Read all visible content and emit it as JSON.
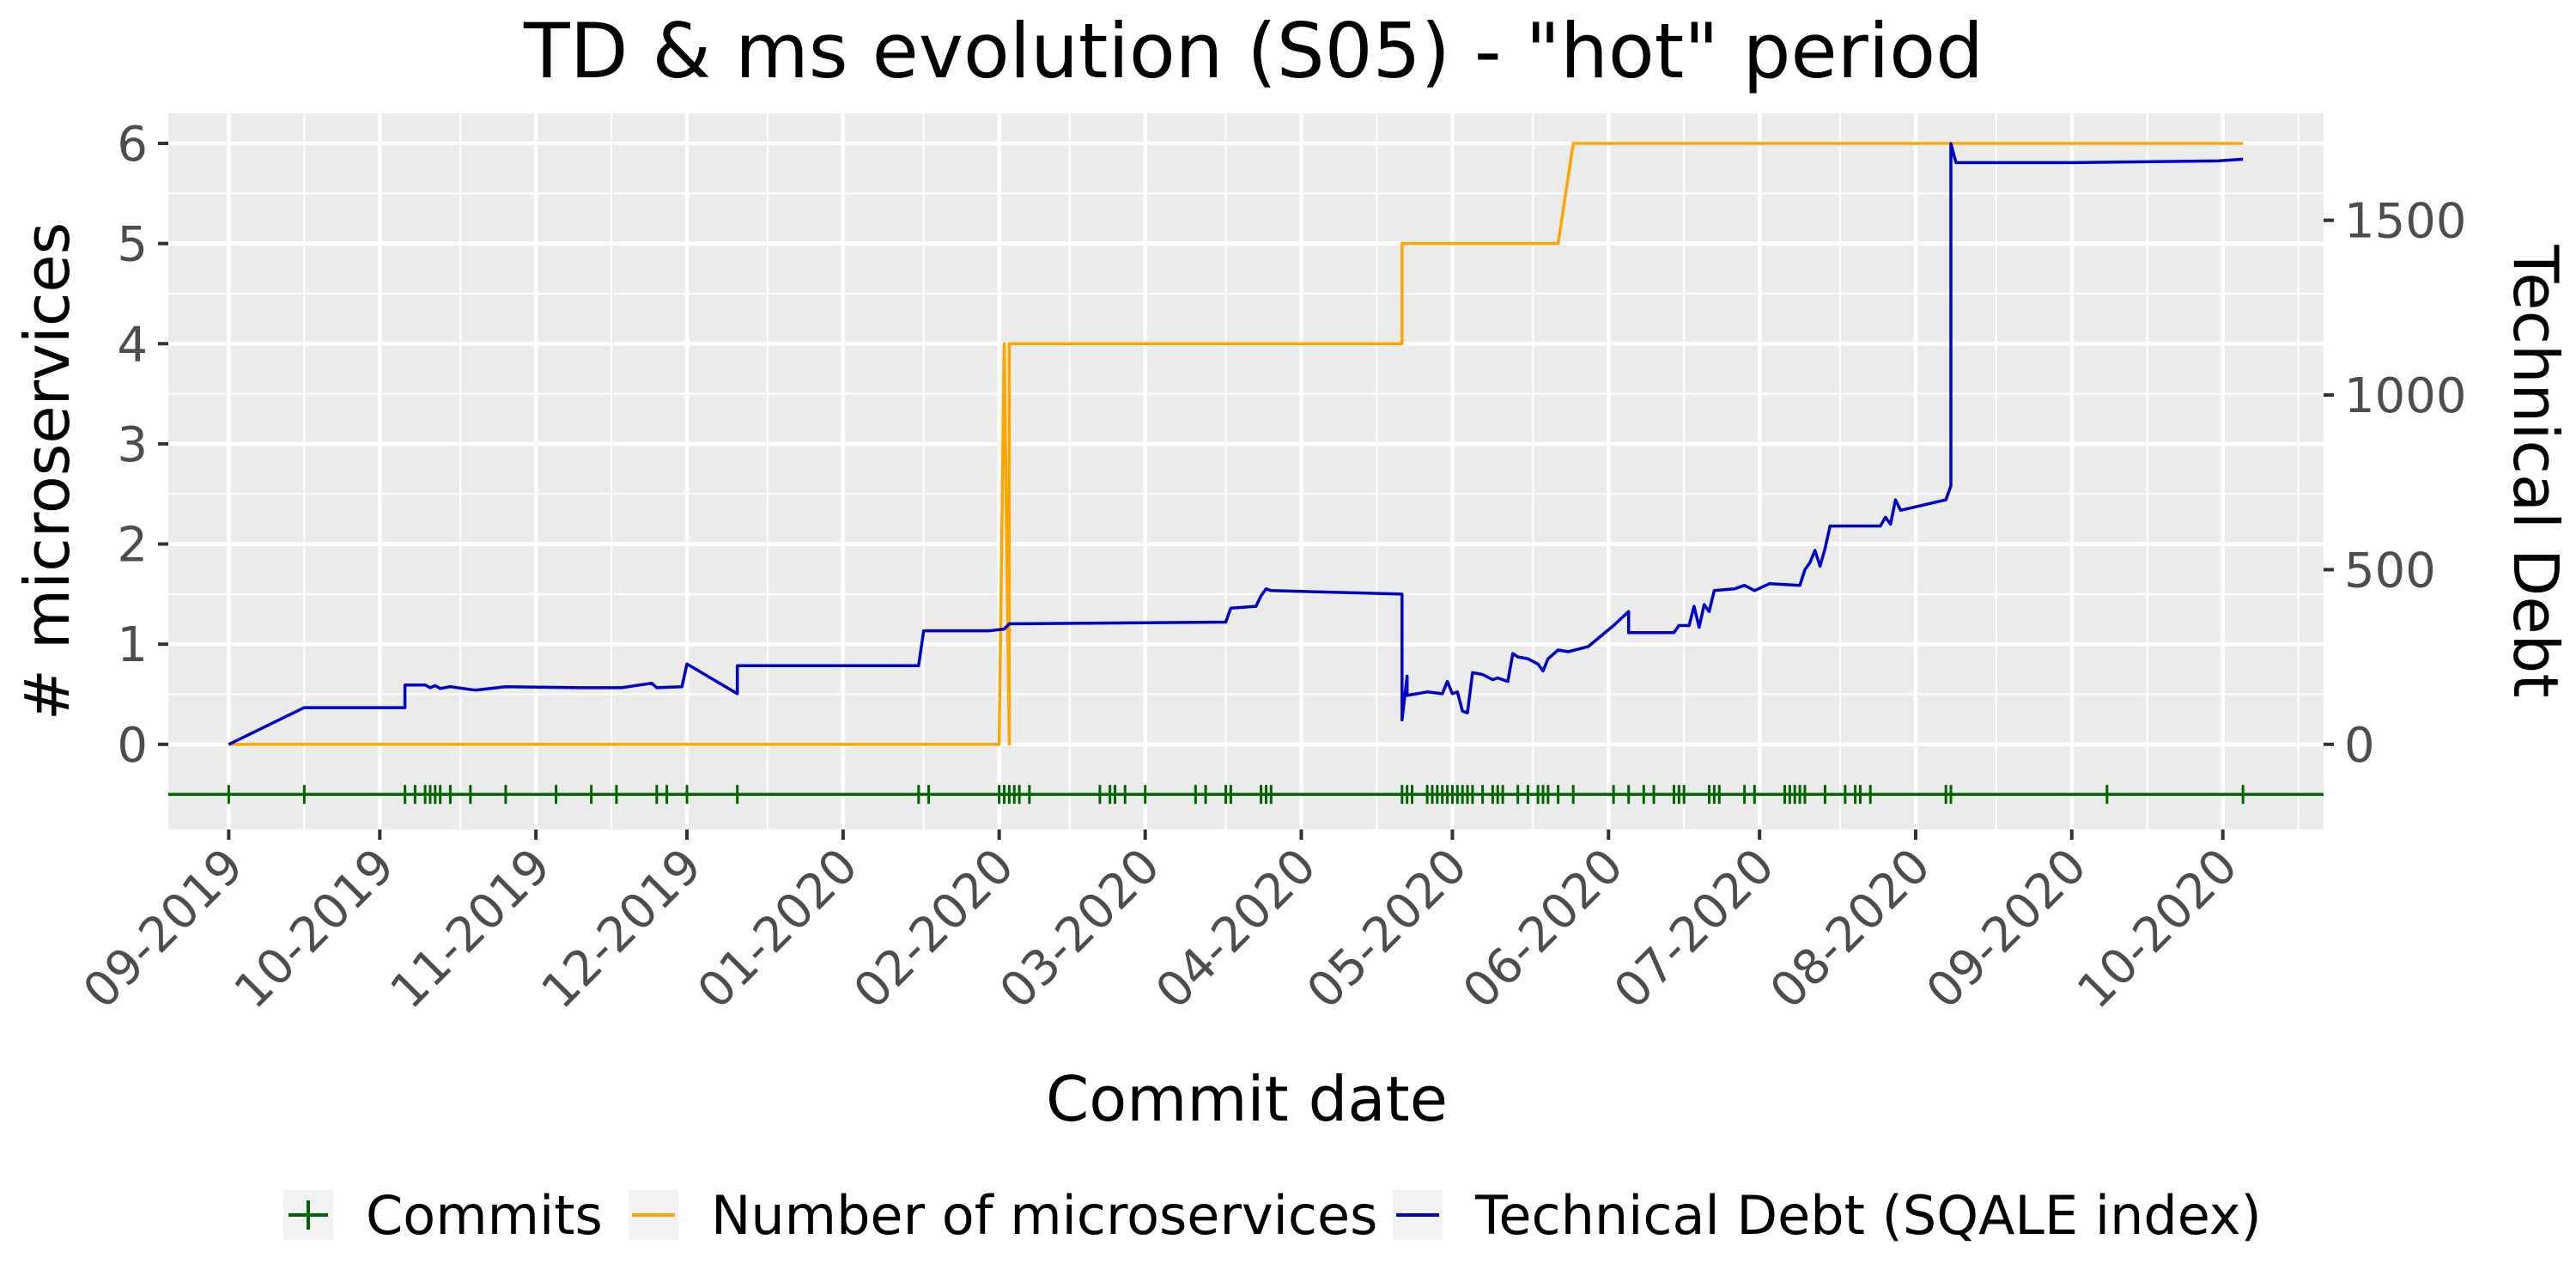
{
  "chart_data": {
    "type": "line",
    "title": "TD & ms evolution (S05) - \"hot\" period",
    "xlabel": "Commit date",
    "ylabel_left": "# microservices",
    "ylabel_right": "Technical Debt",
    "x_tick_labels": [
      "09-2019",
      "10-2019",
      "11-2019",
      "12-2019",
      "01-2020",
      "02-2020",
      "03-2020",
      "04-2020",
      "05-2020",
      "06-2020",
      "07-2020",
      "08-2020",
      "09-2020",
      "10-2020"
    ],
    "y_left_ticks": [
      "0",
      "1",
      "2",
      "3",
      "4",
      "5",
      "6"
    ],
    "y_right_ticks": [
      "0",
      "500",
      "1000",
      "1500"
    ],
    "xlim": [
      "2019-08-20",
      "2020-10-21"
    ],
    "ylim_left": [
      -0.85,
      6.3
    ],
    "ylim_right": [
      -243.7,
      1806.2
    ],
    "grid": true,
    "legend_position": "bottom",
    "colors": {
      "commits": "#006400",
      "microservices": "#ffa500",
      "technical_debt": "#0000cd",
      "panel": "#ebebeb",
      "grid": "#ffffff"
    },
    "series": [
      {
        "name": "Number of microservices",
        "axis": "left",
        "step": true,
        "points": [
          [
            "2019-09-01",
            0
          ],
          [
            "2020-02-01",
            0
          ],
          [
            "2020-02-02",
            4
          ],
          [
            "2020-02-03",
            0
          ],
          [
            "2020-02-03",
            4
          ],
          [
            "2020-04-21",
            4
          ],
          [
            "2020-04-21",
            5
          ],
          [
            "2020-05-22",
            5
          ],
          [
            "2020-05-25",
            6
          ],
          [
            "2020-10-05",
            6
          ]
        ]
      },
      {
        "name": "Technical Debt (SQALE index)",
        "axis": "right",
        "points": [
          [
            "2019-09-01",
            0
          ],
          [
            "2019-09-16",
            105
          ],
          [
            "2019-10-06",
            105
          ],
          [
            "2019-10-06",
            170
          ],
          [
            "2019-10-10",
            170
          ],
          [
            "2019-10-11",
            162
          ],
          [
            "2019-10-12",
            168
          ],
          [
            "2019-10-13",
            160
          ],
          [
            "2019-10-15",
            165
          ],
          [
            "2019-10-20",
            155
          ],
          [
            "2019-10-26",
            165
          ],
          [
            "2019-11-10",
            162
          ],
          [
            "2019-11-18",
            162
          ],
          [
            "2019-11-24",
            175
          ],
          [
            "2019-11-25",
            162
          ],
          [
            "2019-11-30",
            165
          ],
          [
            "2019-12-01",
            230
          ],
          [
            "2019-12-11",
            145
          ],
          [
            "2019-12-11",
            225
          ],
          [
            "2020-01-16",
            225
          ],
          [
            "2020-01-17",
            325
          ],
          [
            "2020-01-30",
            325
          ],
          [
            "2020-02-02",
            330
          ],
          [
            "2020-02-03",
            345
          ],
          [
            "2020-03-17",
            350
          ],
          [
            "2020-03-18",
            390
          ],
          [
            "2020-03-23",
            395
          ],
          [
            "2020-03-24",
            425
          ],
          [
            "2020-03-25",
            445
          ],
          [
            "2020-03-26",
            440
          ],
          [
            "2020-04-21",
            430
          ],
          [
            "2020-04-21",
            70
          ],
          [
            "2020-04-22",
            195
          ],
          [
            "2020-04-22",
            140
          ],
          [
            "2020-04-26",
            150
          ],
          [
            "2020-04-29",
            145
          ],
          [
            "2020-04-30",
            180
          ],
          [
            "2020-05-01",
            145
          ],
          [
            "2020-05-02",
            150
          ],
          [
            "2020-05-03",
            95
          ],
          [
            "2020-05-04",
            90
          ],
          [
            "2020-05-05",
            205
          ],
          [
            "2020-05-07",
            200
          ],
          [
            "2020-05-09",
            185
          ],
          [
            "2020-05-10",
            190
          ],
          [
            "2020-05-11",
            185
          ],
          [
            "2020-05-12",
            180
          ],
          [
            "2020-05-13",
            260
          ],
          [
            "2020-05-14",
            250
          ],
          [
            "2020-05-16",
            245
          ],
          [
            "2020-05-18",
            230
          ],
          [
            "2020-05-19",
            210
          ],
          [
            "2020-05-20",
            245
          ],
          [
            "2020-05-22",
            270
          ],
          [
            "2020-05-24",
            265
          ],
          [
            "2020-05-28",
            280
          ],
          [
            "2020-06-02",
            340
          ],
          [
            "2020-06-05",
            380
          ],
          [
            "2020-06-05",
            320
          ],
          [
            "2020-06-14",
            320
          ],
          [
            "2020-06-15",
            340
          ],
          [
            "2020-06-17",
            340
          ],
          [
            "2020-06-18",
            395
          ],
          [
            "2020-06-19",
            335
          ],
          [
            "2020-06-20",
            400
          ],
          [
            "2020-06-21",
            380
          ],
          [
            "2020-06-22",
            440
          ],
          [
            "2020-06-26",
            445
          ],
          [
            "2020-06-28",
            455
          ],
          [
            "2020-06-30",
            440
          ],
          [
            "2020-07-03",
            460
          ],
          [
            "2020-07-09",
            455
          ],
          [
            "2020-07-10",
            500
          ],
          [
            "2020-07-11",
            520
          ],
          [
            "2020-07-12",
            555
          ],
          [
            "2020-07-13",
            510
          ],
          [
            "2020-07-14",
            560
          ],
          [
            "2020-07-15",
            625
          ],
          [
            "2020-07-25",
            625
          ],
          [
            "2020-07-26",
            650
          ],
          [
            "2020-07-27",
            630
          ],
          [
            "2020-07-28",
            700
          ],
          [
            "2020-07-29",
            670
          ],
          [
            "2020-08-07",
            700
          ],
          [
            "2020-08-08",
            740
          ],
          [
            "2020-08-08",
            1720
          ],
          [
            "2020-08-09",
            1665
          ],
          [
            "2020-09-01",
            1665
          ],
          [
            "2020-09-30",
            1670
          ],
          [
            "2020-10-05",
            1675
          ]
        ]
      }
    ],
    "commits": [
      "2019-09-01",
      "2019-09-16",
      "2019-10-06",
      "2019-10-08",
      "2019-10-10",
      "2019-10-11",
      "2019-10-12",
      "2019-10-13",
      "2019-10-15",
      "2019-10-19",
      "2019-10-26",
      "2019-11-05",
      "2019-11-12",
      "2019-11-17",
      "2019-11-25",
      "2019-11-27",
      "2019-12-01",
      "2019-12-11",
      "2020-01-16",
      "2020-01-18",
      "2020-02-01",
      "2020-02-02",
      "2020-02-03",
      "2020-02-04",
      "2020-02-05",
      "2020-02-07",
      "2020-02-21",
      "2020-02-23",
      "2020-02-24",
      "2020-02-26",
      "2020-03-01",
      "2020-03-11",
      "2020-03-13",
      "2020-03-17",
      "2020-03-18",
      "2020-03-24",
      "2020-03-25",
      "2020-03-26",
      "2020-04-21",
      "2020-04-22",
      "2020-04-23",
      "2020-04-26",
      "2020-04-27",
      "2020-04-28",
      "2020-04-29",
      "2020-04-30",
      "2020-05-01",
      "2020-05-02",
      "2020-05-03",
      "2020-05-04",
      "2020-05-05",
      "2020-05-07",
      "2020-05-09",
      "2020-05-10",
      "2020-05-11",
      "2020-05-14",
      "2020-05-16",
      "2020-05-18",
      "2020-05-19",
      "2020-05-20",
      "2020-05-22",
      "2020-05-25",
      "2020-06-02",
      "2020-06-05",
      "2020-06-08",
      "2020-06-10",
      "2020-06-14",
      "2020-06-15",
      "2020-06-16",
      "2020-06-21",
      "2020-06-22",
      "2020-06-23",
      "2020-06-28",
      "2020-06-30",
      "2020-07-06",
      "2020-07-07",
      "2020-07-08",
      "2020-07-09",
      "2020-07-10",
      "2020-07-14",
      "2020-07-18",
      "2020-07-20",
      "2020-07-21",
      "2020-07-23",
      "2020-08-07",
      "2020-08-08",
      "2020-09-08",
      "2020-10-05"
    ],
    "legend": [
      {
        "label": "Commits",
        "key": "commits"
      },
      {
        "label": "Number of microservices",
        "key": "microservices"
      },
      {
        "label": "Technical Debt (SQALE index)",
        "key": "technical_debt"
      }
    ]
  }
}
